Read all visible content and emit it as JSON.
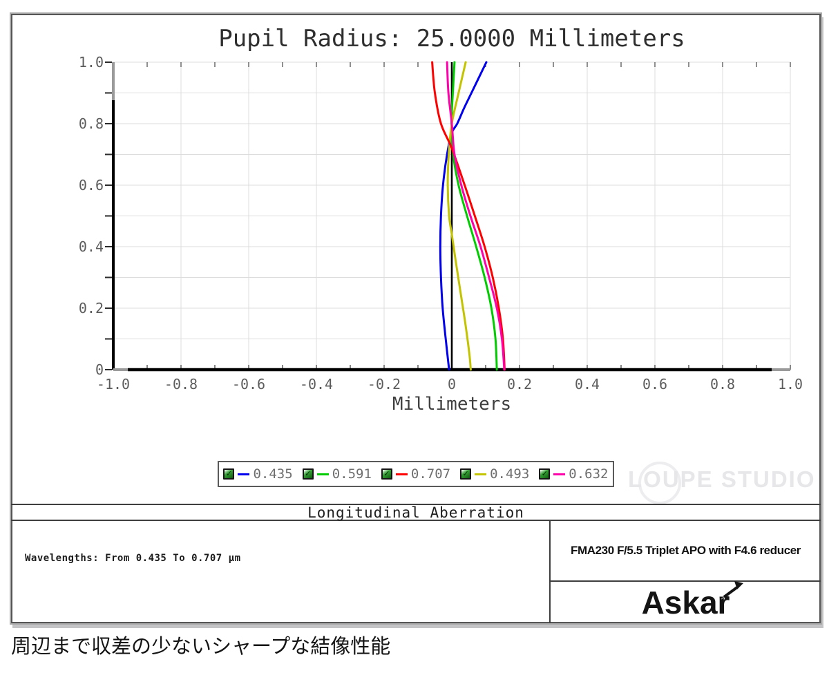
{
  "chart_data": {
    "type": "line",
    "title": "Pupil Radius: 25.0000 Millimeters",
    "xlabel": "Millimeters",
    "xlim": [
      -1.0,
      1.0
    ],
    "ylim": [
      0.0,
      1.0
    ],
    "x_tick_labels": [
      "-1.0",
      "-0.8",
      "-0.6",
      "-0.4",
      "-0.2",
      "0",
      "0.2",
      "0.4",
      "0.6",
      "0.8",
      "1.0"
    ],
    "y_tick_labels": [
      "1.0",
      "0.8",
      "0.6",
      "0.4",
      "0.2",
      "0"
    ],
    "x_grid_step": 0.2,
    "y_grid_step": 0.1,
    "grid": true,
    "grid_color": "#dcdcdc",
    "axis_color": "#000000",
    "axis_tip_color": "#9a9a9a",
    "tick_label_color": "#5c5c5c",
    "zero_vertical_line": 0,
    "legend_position": "bottom-center",
    "axes_note": "x = longitudinal aberration (mm), y = normalized pupil height",
    "series": [
      {
        "name": "0.435",
        "color": "#0000ee",
        "z": 1,
        "points": [
          [
            1.0,
            0.102
          ],
          [
            0.9,
            0.058
          ],
          [
            0.85,
            0.036
          ],
          [
            0.8,
            0.016
          ],
          [
            0.77,
            0.0
          ],
          [
            0.7,
            -0.014
          ],
          [
            0.6,
            -0.026
          ],
          [
            0.5,
            -0.032
          ],
          [
            0.4,
            -0.034
          ],
          [
            0.3,
            -0.032
          ],
          [
            0.2,
            -0.027
          ],
          [
            0.1,
            -0.018
          ],
          [
            0.0,
            -0.008
          ]
        ]
      },
      {
        "name": "0.591",
        "color": "#00cc00",
        "z": 2,
        "points": [
          [
            1.0,
            0.008
          ],
          [
            0.9,
            0.003
          ],
          [
            0.8,
            -0.001
          ],
          [
            0.7,
            0.004
          ],
          [
            0.6,
            0.02
          ],
          [
            0.5,
            0.045
          ],
          [
            0.4,
            0.072
          ],
          [
            0.3,
            0.097
          ],
          [
            0.2,
            0.117
          ],
          [
            0.1,
            0.129
          ],
          [
            0.0,
            0.133
          ]
        ]
      },
      {
        "name": "0.707",
        "color": "#ff0000",
        "z": 4,
        "points": [
          [
            1.0,
            -0.058
          ],
          [
            0.9,
            -0.05
          ],
          [
            0.8,
            -0.032
          ],
          [
            0.72,
            0.0
          ],
          [
            0.6,
            0.038
          ],
          [
            0.5,
            0.068
          ],
          [
            0.4,
            0.097
          ],
          [
            0.3,
            0.121
          ],
          [
            0.2,
            0.139
          ],
          [
            0.1,
            0.151
          ],
          [
            0.0,
            0.156
          ]
        ]
      },
      {
        "name": "0.493",
        "color": "#c3c300",
        "z": 3,
        "points": [
          [
            1.0,
            0.041
          ],
          [
            0.9,
            0.02
          ],
          [
            0.8,
            0.0
          ],
          [
            0.7,
            -0.009
          ],
          [
            0.6,
            -0.012
          ],
          [
            0.5,
            -0.008
          ],
          [
            0.44,
            0.0
          ],
          [
            0.35,
            0.012
          ],
          [
            0.25,
            0.026
          ],
          [
            0.15,
            0.04
          ],
          [
            0.05,
            0.052
          ],
          [
            0.0,
            0.056
          ]
        ]
      },
      {
        "name": "0.632",
        "color": "#ff00aa",
        "z": 5,
        "points": [
          [
            1.0,
            -0.014
          ],
          [
            0.9,
            -0.01
          ],
          [
            0.8,
            0.0
          ],
          [
            0.7,
            0.008
          ],
          [
            0.6,
            0.028
          ],
          [
            0.5,
            0.055
          ],
          [
            0.4,
            0.085
          ],
          [
            0.3,
            0.11
          ],
          [
            0.2,
            0.133
          ],
          [
            0.1,
            0.148
          ],
          [
            0.0,
            0.155
          ]
        ]
      }
    ]
  },
  "watermark": {
    "text": "LOUPE STUDIO"
  },
  "sections": {
    "chart_footer_title": "Longitudinal Aberration",
    "wavelengths_note": "Wavelengths: From 0.435 To 0.707 µm",
    "product_title": "FMA230 F/5.5 Triplet APO with F4.6 reducer",
    "brand_logo_text": "Askar"
  },
  "caption": {
    "text": "周辺まで収差の少ないシャープな結像性能"
  }
}
